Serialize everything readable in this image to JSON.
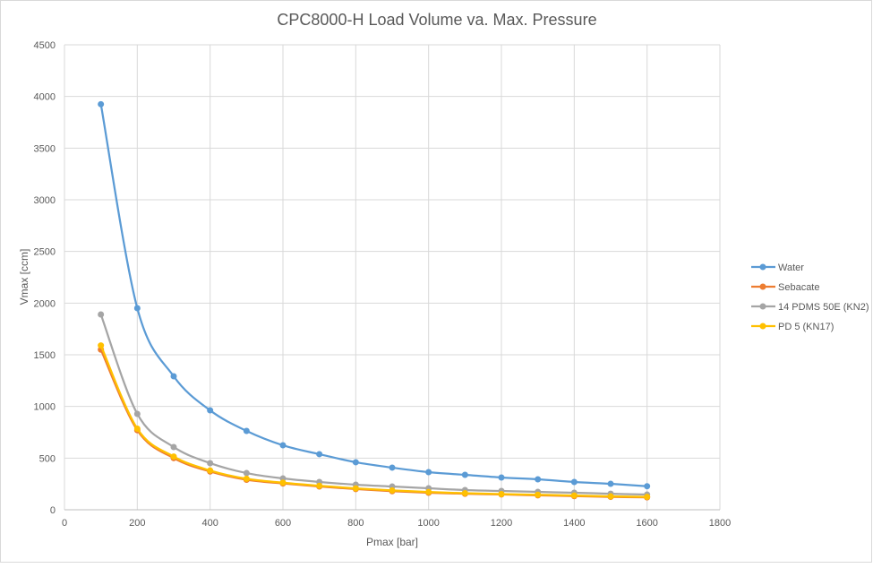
{
  "chart_data": {
    "type": "line",
    "title": "CPC8000-H Load Volume va. Max. Pressure",
    "xlabel": "Pmax [bar]",
    "ylabel": "Vmax [ccm]",
    "xlim": [
      0,
      1800
    ],
    "ylim": [
      0,
      4500
    ],
    "xticks": [
      0,
      200,
      400,
      600,
      800,
      1000,
      1200,
      1400,
      1600,
      1800
    ],
    "yticks": [
      0,
      500,
      1000,
      1500,
      2000,
      2500,
      3000,
      3500,
      4000,
      4500
    ],
    "grid": true,
    "smooth": true,
    "legend_position": "right",
    "x": [
      100,
      200,
      300,
      400,
      500,
      600,
      700,
      800,
      900,
      1000,
      1100,
      1200,
      1300,
      1400,
      1500,
      1600
    ],
    "series": [
      {
        "name": "Water",
        "color": "#5b9bd5",
        "values": [
          3925,
          1951,
          1292,
          962,
          763,
          624,
          538,
          460,
          408,
          364,
          338,
          312,
          295,
          269,
          251,
          228
        ]
      },
      {
        "name": "Sebacate",
        "color": "#ed7d31",
        "values": [
          1550,
          770,
          500,
          370,
          290,
          255,
          225,
          200,
          180,
          165,
          155,
          148,
          140,
          132,
          125,
          120
        ]
      },
      {
        "name": "14 PDMS 50E (KN2)",
        "color": "#a5a5a5",
        "values": [
          1890,
          928,
          607,
          451,
          355,
          303,
          269,
          243,
          225,
          208,
          191,
          182,
          173,
          165,
          155,
          147
        ]
      },
      {
        "name": "PD 5 (KN17)",
        "color": "#ffc000",
        "values": [
          1590,
          785,
          515,
          380,
          300,
          262,
          232,
          207,
          187,
          172,
          160,
          152,
          145,
          138,
          130,
          125
        ]
      }
    ]
  }
}
